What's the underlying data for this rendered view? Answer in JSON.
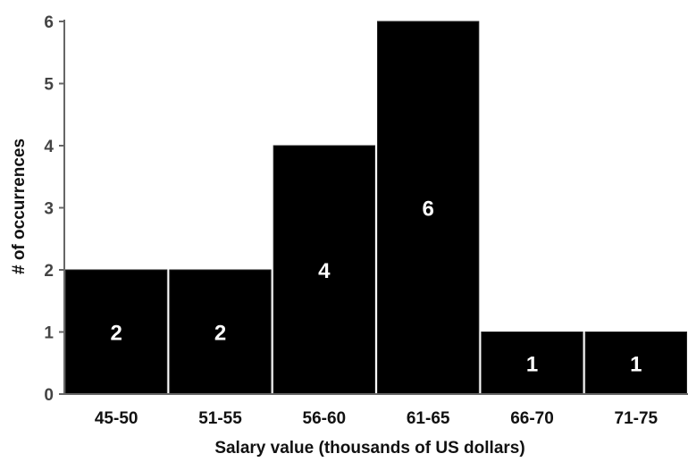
{
  "chart_data": {
    "type": "bar",
    "categories": [
      "45-50",
      "51-55",
      "56-60",
      "61-65",
      "66-70",
      "71-75"
    ],
    "values": [
      2,
      2,
      4,
      6,
      1,
      1
    ],
    "data_labels": [
      "2",
      "2",
      "4",
      "6",
      "1",
      "1"
    ],
    "title": "",
    "xlabel": "Salary value (thousands of US dollars)",
    "ylabel": "# of occurrences",
    "ylim": [
      0,
      6
    ],
    "yticks": [
      "0",
      "1",
      "2",
      "3",
      "4",
      "5",
      "6"
    ],
    "grid": false,
    "legend": "none",
    "colors": {
      "bar": "#000000",
      "axis": "#666666",
      "label": "#ffffff"
    }
  }
}
